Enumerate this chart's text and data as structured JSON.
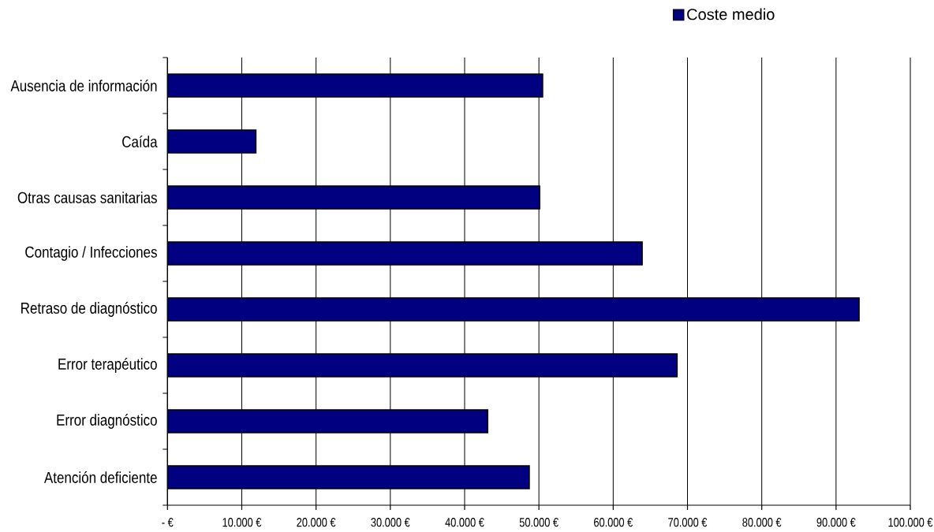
{
  "chart_data": {
    "type": "bar",
    "orientation": "horizontal",
    "categories": [
      "Ausencia de información",
      "Caída",
      "Otras causas sanitarias",
      "Contagio / Infecciones",
      "Retraso de diagnóstico",
      "Error terapéutico",
      "Error diagnóstico",
      "Atención deficiente"
    ],
    "series": [
      {
        "name": "Coste medio",
        "color": "#000080",
        "values": [
          50500,
          11900,
          50100,
          63900,
          93100,
          68600,
          43100,
          48700
        ]
      }
    ],
    "xlim": [
      0,
      100000
    ],
    "xticks": [
      {
        "value": 0,
        "label": "- €"
      },
      {
        "value": 10000,
        "label": "10.000 €"
      },
      {
        "value": 20000,
        "label": "20.000 €"
      },
      {
        "value": 30000,
        "label": "30.000 €"
      },
      {
        "value": 40000,
        "label": "40.000 €"
      },
      {
        "value": 50000,
        "label": "50.000 €"
      },
      {
        "value": 60000,
        "label": "60.000 €"
      },
      {
        "value": 70000,
        "label": "70.000 €"
      },
      {
        "value": 80000,
        "label": "80.000 €"
      },
      {
        "value": 90000,
        "label": "90.000 €"
      },
      {
        "value": 100000,
        "label": "100.000 €"
      }
    ],
    "grid": "x",
    "legend": "top right"
  }
}
